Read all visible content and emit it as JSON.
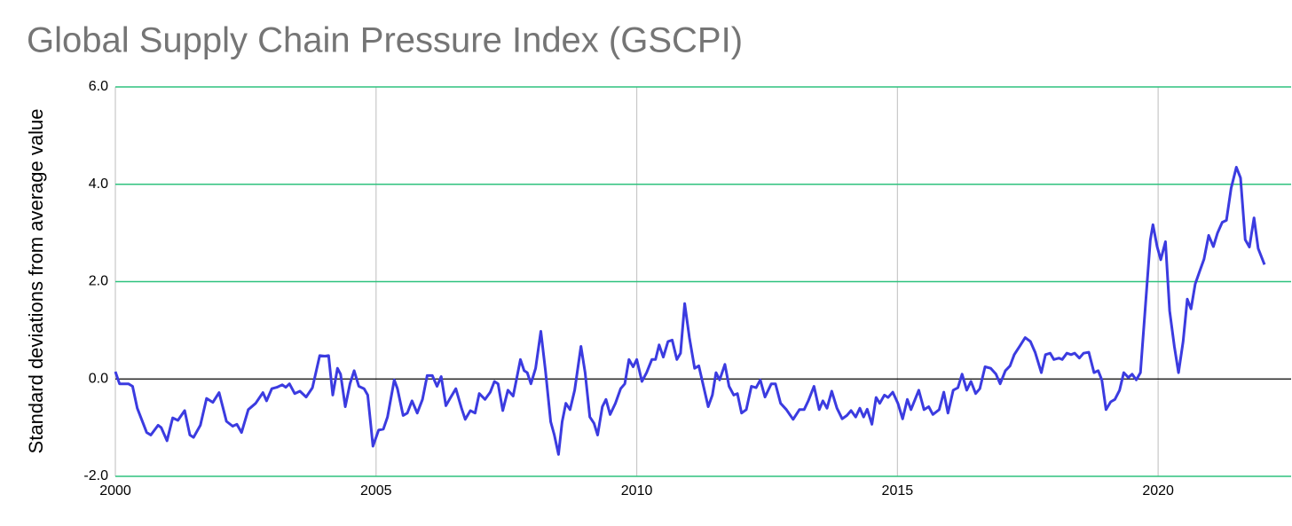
{
  "chart_data": {
    "type": "line",
    "title": "Global Supply Chain Pressure Index (GSCPI)",
    "y_label": "Standard deviations from average value",
    "xlim": [
      2000,
      2022.04
    ],
    "xticks": [
      2000,
      2005,
      2010,
      2015,
      2020
    ],
    "ylim": [
      -2,
      6
    ],
    "yticks": [
      {
        "value": -2,
        "label": "-2.0"
      },
      {
        "value": 0,
        "label": "0.0"
      },
      {
        "value": 2,
        "label": "2.0"
      },
      {
        "value": 4,
        "label": "4.0"
      },
      {
        "value": 6,
        "label": "6.0"
      }
    ],
    "grid": true,
    "series": [
      {
        "color": "#3b3be0",
        "x": [
          2000.0,
          2000.08,
          2000.25,
          2000.33,
          2000.42,
          2000.6,
          2000.68,
          2000.82,
          2000.88,
          2000.99,
          2001.1,
          2001.2,
          2001.33,
          2001.43,
          2001.5,
          2001.63,
          2001.75,
          2001.87,
          2001.99,
          2002.13,
          2002.25,
          2002.33,
          2002.42,
          2002.55,
          2002.69,
          2002.83,
          2002.9,
          2003.0,
          2003.1,
          2003.2,
          2003.27,
          2003.34,
          2003.44,
          2003.54,
          2003.66,
          2003.78,
          2003.92,
          2004.02,
          2004.09,
          2004.17,
          2004.26,
          2004.32,
          2004.41,
          2004.5,
          2004.58,
          2004.67,
          2004.77,
          2004.84,
          2004.94,
          2005.05,
          2005.14,
          2005.22,
          2005.35,
          2005.41,
          2005.52,
          2005.6,
          2005.69,
          2005.79,
          2005.89,
          2005.98,
          2006.08,
          2006.17,
          2006.25,
          2006.34,
          2006.43,
          2006.53,
          2006.64,
          2006.71,
          2006.81,
          2006.9,
          2006.98,
          2007.09,
          2007.19,
          2007.27,
          2007.34,
          2007.43,
          2007.53,
          2007.63,
          2007.77,
          2007.84,
          2007.9,
          2007.97,
          2008.06,
          2008.16,
          2008.25,
          2008.35,
          2008.42,
          2008.5,
          2008.57,
          2008.64,
          2008.72,
          2008.81,
          2008.93,
          2009.01,
          2009.1,
          2009.18,
          2009.25,
          2009.34,
          2009.41,
          2009.49,
          2009.59,
          2009.69,
          2009.77,
          2009.85,
          2009.93,
          2010.0,
          2010.1,
          2010.19,
          2010.29,
          2010.36,
          2010.43,
          2010.51,
          2010.6,
          2010.68,
          2010.77,
          2010.84,
          2010.92,
          2011.01,
          2011.11,
          2011.19,
          2011.28,
          2011.37,
          2011.45,
          2011.52,
          2011.59,
          2011.69,
          2011.77,
          2011.86,
          2011.93,
          2012.01,
          2012.1,
          2012.2,
          2012.29,
          2012.37,
          2012.46,
          2012.58,
          2012.66,
          2012.76,
          2012.87,
          2013.0,
          2013.12,
          2013.21,
          2013.29,
          2013.4,
          2013.5,
          2013.57,
          2013.65,
          2013.74,
          2013.84,
          2013.94,
          2014.03,
          2014.11,
          2014.2,
          2014.28,
          2014.35,
          2014.42,
          2014.51,
          2014.59,
          2014.66,
          2014.75,
          2014.82,
          2014.91,
          2015.01,
          2015.1,
          2015.19,
          2015.26,
          2015.41,
          2015.51,
          2015.6,
          2015.68,
          2015.8,
          2015.89,
          2015.97,
          2016.07,
          2016.16,
          2016.24,
          2016.33,
          2016.41,
          2016.5,
          2016.58,
          2016.68,
          2016.79,
          2016.89,
          2016.97,
          2017.07,
          2017.16,
          2017.24,
          2017.35,
          2017.45,
          2017.55,
          2017.64,
          2017.76,
          2017.84,
          2017.93,
          2018.0,
          2018.1,
          2018.16,
          2018.25,
          2018.33,
          2018.4,
          2018.49,
          2018.57,
          2018.67,
          2018.77,
          2018.85,
          2018.92,
          2019.0,
          2019.09,
          2019.17,
          2019.26,
          2019.34,
          2019.43,
          2019.5,
          2019.58,
          2019.66,
          2019.75,
          2019.85,
          2019.9,
          2019.98,
          2020.05,
          2020.14,
          2020.22,
          2020.31,
          2020.39,
          2020.48,
          2020.56,
          2020.63,
          2020.71,
          2020.8,
          2020.88,
          2020.97,
          2021.06,
          2021.14,
          2021.23,
          2021.31,
          2021.4,
          2021.5,
          2021.58,
          2021.67,
          2021.75,
          2021.84,
          2021.92,
          2022.04
        ],
        "values": [
          0.15,
          -0.1,
          -0.1,
          -0.15,
          -0.6,
          -1.1,
          -1.15,
          -0.95,
          -1.0,
          -1.27,
          -0.8,
          -0.85,
          -0.65,
          -1.15,
          -1.2,
          -0.95,
          -0.4,
          -0.48,
          -0.28,
          -0.87,
          -0.97,
          -0.93,
          -1.1,
          -0.63,
          -0.5,
          -0.28,
          -0.45,
          -0.2,
          -0.17,
          -0.12,
          -0.17,
          -0.1,
          -0.3,
          -0.25,
          -0.37,
          -0.18,
          0.48,
          0.47,
          0.48,
          -0.33,
          0.22,
          0.1,
          -0.57,
          -0.1,
          0.17,
          -0.15,
          -0.2,
          -0.33,
          -1.38,
          -1.05,
          -1.03,
          -0.78,
          -0.02,
          -0.2,
          -0.75,
          -0.7,
          -0.45,
          -0.7,
          -0.42,
          0.07,
          0.07,
          -0.15,
          0.05,
          -0.55,
          -0.38,
          -0.2,
          -0.6,
          -0.83,
          -0.65,
          -0.7,
          -0.3,
          -0.42,
          -0.27,
          -0.05,
          -0.1,
          -0.65,
          -0.23,
          -0.35,
          0.4,
          0.17,
          0.13,
          -0.1,
          0.22,
          0.98,
          0.17,
          -0.88,
          -1.15,
          -1.55,
          -0.88,
          -0.5,
          -0.63,
          -0.23,
          0.67,
          0.13,
          -0.78,
          -0.91,
          -1.15,
          -0.57,
          -0.42,
          -0.73,
          -0.5,
          -0.2,
          -0.1,
          0.4,
          0.25,
          0.4,
          -0.05,
          0.13,
          0.4,
          0.4,
          0.7,
          0.45,
          0.77,
          0.8,
          0.4,
          0.53,
          1.55,
          0.85,
          0.22,
          0.27,
          -0.15,
          -0.57,
          -0.33,
          0.13,
          -0.02,
          0.3,
          -0.15,
          -0.33,
          -0.3,
          -0.7,
          -0.63,
          -0.15,
          -0.18,
          -0.02,
          -0.37,
          -0.1,
          -0.1,
          -0.5,
          -0.63,
          -0.83,
          -0.63,
          -0.63,
          -0.45,
          -0.15,
          -0.63,
          -0.45,
          -0.6,
          -0.25,
          -0.6,
          -0.82,
          -0.75,
          -0.65,
          -0.78,
          -0.6,
          -0.78,
          -0.62,
          -0.93,
          -0.38,
          -0.5,
          -0.33,
          -0.38,
          -0.27,
          -0.5,
          -0.82,
          -0.42,
          -0.63,
          -0.23,
          -0.63,
          -0.57,
          -0.73,
          -0.63,
          -0.27,
          -0.7,
          -0.23,
          -0.18,
          0.1,
          -0.23,
          -0.05,
          -0.3,
          -0.2,
          0.25,
          0.22,
          0.1,
          -0.1,
          0.17,
          0.27,
          0.5,
          0.68,
          0.85,
          0.77,
          0.55,
          0.13,
          0.5,
          0.53,
          0.4,
          0.43,
          0.4,
          0.53,
          0.5,
          0.53,
          0.43,
          0.53,
          0.55,
          0.13,
          0.17,
          -0.02,
          -0.63,
          -0.47,
          -0.42,
          -0.23,
          0.13,
          0.03,
          0.1,
          -0.02,
          0.13,
          1.4,
          2.85,
          3.17,
          2.72,
          2.45,
          2.82,
          1.4,
          0.67,
          0.13,
          0.77,
          1.64,
          1.44,
          1.95,
          2.22,
          2.46,
          2.95,
          2.72,
          3.0,
          3.22,
          3.26,
          3.92,
          4.35,
          4.13,
          2.86,
          2.71,
          3.31,
          2.68,
          2.35
        ]
      }
    ]
  }
}
